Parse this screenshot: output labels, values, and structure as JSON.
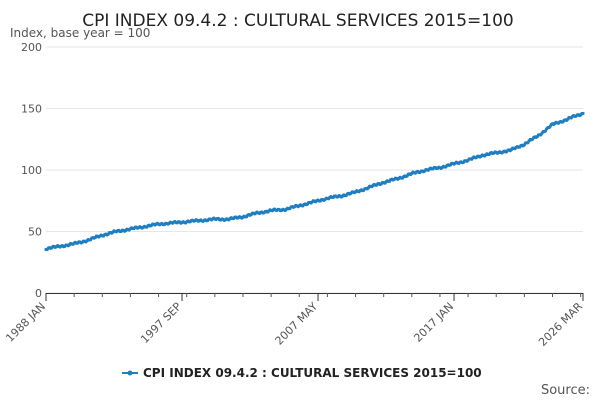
{
  "chart_data": {
    "type": "line",
    "title": "CPI INDEX 09.4.2 : CULTURAL SERVICES 2015=100",
    "ylabel": "Index, base year = 100",
    "xlabel": "",
    "ylim": [
      0,
      200
    ],
    "yticks": [
      "0",
      "50",
      "100",
      "150",
      "200"
    ],
    "xticks": [
      {
        "label": "1988 JAN",
        "x": "1988-01"
      },
      {
        "label": "1997 SEP",
        "x": "1997-09"
      },
      {
        "label": "2007 MAY",
        "x": "2007-05"
      },
      {
        "label": "2017 JAN",
        "x": "2017-01"
      },
      {
        "label": "2026 MAR",
        "x": "2026-03"
      }
    ],
    "xrange": [
      "1988-01",
      "2026-03"
    ],
    "grid": true,
    "legend_position": "bottom",
    "color": "#1f7fc0",
    "series": [
      {
        "name": "CPI INDEX 09.4.2 : CULTURAL SERVICES 2015=100",
        "points": [
          [
            "1988-01",
            36
          ],
          [
            "1989-01",
            38
          ],
          [
            "1990-01",
            40
          ],
          [
            "1991-01",
            43
          ],
          [
            "1992-01",
            47
          ],
          [
            "1993-01",
            50
          ],
          [
            "1994-01",
            52
          ],
          [
            "1995-01",
            54
          ],
          [
            "1996-01",
            56
          ],
          [
            "1997-01",
            57
          ],
          [
            "1998-01",
            58
          ],
          [
            "1999-01",
            59
          ],
          [
            "2000-01",
            60
          ],
          [
            "2001-01",
            60
          ],
          [
            "2002-01",
            62
          ],
          [
            "2003-01",
            65
          ],
          [
            "2004-01",
            67
          ],
          [
            "2005-01",
            68
          ],
          [
            "2006-01",
            71
          ],
          [
            "2007-01",
            74
          ],
          [
            "2008-01",
            77
          ],
          [
            "2009-01",
            79
          ],
          [
            "2010-01",
            82
          ],
          [
            "2011-01",
            86
          ],
          [
            "2012-01",
            90
          ],
          [
            "2013-01",
            93
          ],
          [
            "2014-01",
            97
          ],
          [
            "2015-01",
            100
          ],
          [
            "2016-01",
            102
          ],
          [
            "2017-01",
            105
          ],
          [
            "2018-01",
            108
          ],
          [
            "2019-01",
            112
          ],
          [
            "2020-01",
            114
          ],
          [
            "2021-01",
            116
          ],
          [
            "2022-01",
            121
          ],
          [
            "2023-01",
            128
          ],
          [
            "2024-01",
            137
          ],
          [
            "2025-01",
            141
          ],
          [
            "2025-06",
            143
          ],
          [
            "2026-03",
            146
          ]
        ]
      }
    ]
  },
  "footer": {
    "source_label": "Source:"
  }
}
